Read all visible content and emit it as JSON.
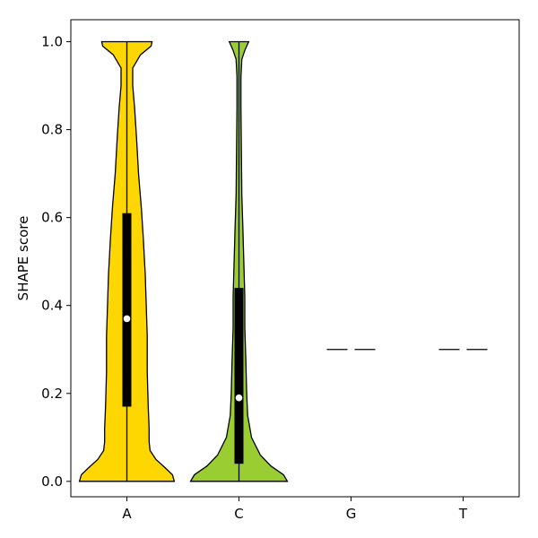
{
  "chart_data": {
    "type": "violin",
    "title": "",
    "xlabel": "",
    "ylabel": "SHAPE score",
    "ylim": [
      -0.035,
      1.05
    ],
    "categories": [
      "A",
      "C",
      "G",
      "T"
    ],
    "yticks": [
      "0.0",
      "0.2",
      "0.4",
      "0.6",
      "0.8",
      "1.0"
    ],
    "grid": false,
    "legend": "none",
    "violins": [
      {
        "category": "A",
        "color": "#FFD700",
        "min": 0.0,
        "max": 1.0,
        "q1": 0.17,
        "median": 0.37,
        "q3": 0.61,
        "density": [
          [
            0.0,
            0.49
          ],
          [
            0.015,
            0.47
          ],
          [
            0.03,
            0.4
          ],
          [
            0.05,
            0.3
          ],
          [
            0.07,
            0.24
          ],
          [
            0.09,
            0.23
          ],
          [
            0.12,
            0.23
          ],
          [
            0.17,
            0.22
          ],
          [
            0.25,
            0.21
          ],
          [
            0.33,
            0.21
          ],
          [
            0.4,
            0.2
          ],
          [
            0.47,
            0.19
          ],
          [
            0.55,
            0.17
          ],
          [
            0.62,
            0.15
          ],
          [
            0.7,
            0.12
          ],
          [
            0.78,
            0.1
          ],
          [
            0.85,
            0.08
          ],
          [
            0.9,
            0.06
          ],
          [
            0.94,
            0.06
          ],
          [
            0.97,
            0.14
          ],
          [
            0.99,
            0.25
          ],
          [
            1.0,
            0.26
          ]
        ]
      },
      {
        "category": "C",
        "color": "#9ACD32",
        "min": 0.0,
        "max": 1.0,
        "q1": 0.04,
        "median": 0.19,
        "q3": 0.44,
        "density": [
          [
            0.0,
            0.5
          ],
          [
            0.015,
            0.46
          ],
          [
            0.035,
            0.33
          ],
          [
            0.06,
            0.22
          ],
          [
            0.1,
            0.13
          ],
          [
            0.15,
            0.09
          ],
          [
            0.2,
            0.08
          ],
          [
            0.28,
            0.07
          ],
          [
            0.35,
            0.06
          ],
          [
            0.42,
            0.06
          ],
          [
            0.5,
            0.05
          ],
          [
            0.58,
            0.04
          ],
          [
            0.65,
            0.03
          ],
          [
            0.75,
            0.025
          ],
          [
            0.85,
            0.02
          ],
          [
            0.92,
            0.02
          ],
          [
            0.96,
            0.03
          ],
          [
            0.98,
            0.06
          ],
          [
            1.0,
            0.1
          ]
        ]
      },
      {
        "category": "G",
        "color": "#000000",
        "placeholder_y": 0.3
      },
      {
        "category": "T",
        "color": "#000000",
        "placeholder_y": 0.3
      }
    ]
  }
}
